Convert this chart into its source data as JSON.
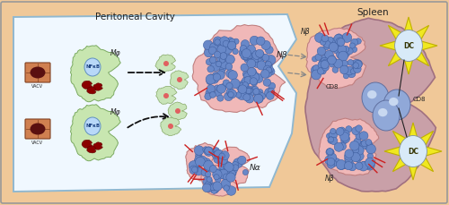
{
  "bg_color": "#f0c898",
  "peri_color": "#f0f8ff",
  "peri_edge": "#90b8d0",
  "spleen_color": "#c9a0a8",
  "spleen_edge": "#a07080",
  "mac_color": "#c8e6b0",
  "mac_edge": "#7aaa60",
  "nfkb_color": "#b8d8f8",
  "nfkb_edge": "#6090c0",
  "vacv_color": "#c8784a",
  "vacv_edge": "#804020",
  "neut_color": "#f0b8b8",
  "neut_edge": "#c08080",
  "dc_color": "#f0e820",
  "dc_edge": "#c0b000",
  "cd8_color": "#90a8d8",
  "cd8_edge": "#6070a0",
  "blue_dot_color": "#6888c8",
  "blue_dot_edge": "#4060a0",
  "red_stick_color": "#cc2020",
  "arrow_color": "#222222",
  "gray_arrow_color": "#888888",
  "label_color": "#222222",
  "peri_label": "Peritoneal Cavity",
  "spleen_label": "Spleen",
  "nbeta_label": "Nβ",
  "nalpha_label": "Nα",
  "mphi_label": "Mφ",
  "nfkb_label": "NFκB",
  "vacv_label": "VACV",
  "dc_label": "DC",
  "cd8_label": "CD8"
}
